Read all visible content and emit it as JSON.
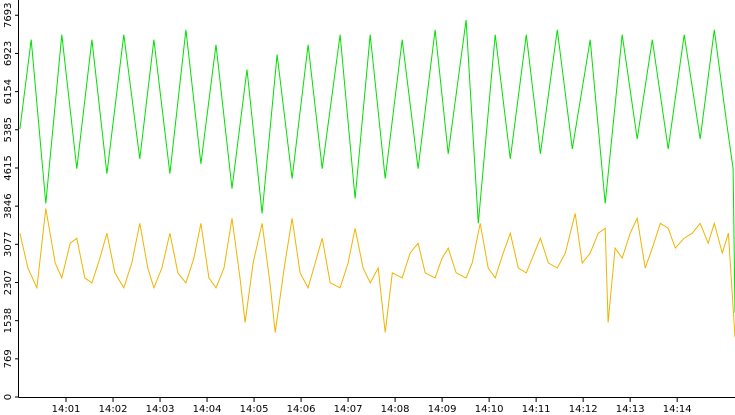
{
  "chart_data": {
    "type": "line",
    "xlim": [
      0,
      15.23
    ],
    "ylim": [
      0,
      8000
    ],
    "yticks": [
      0,
      769,
      1538,
      2307,
      3077,
      3846,
      4615,
      5385,
      6154,
      6923,
      7693
    ],
    "xticks": [
      {
        "value": 1,
        "label": "14:01"
      },
      {
        "value": 2,
        "label": "14:02"
      },
      {
        "value": 3,
        "label": "14:03"
      },
      {
        "value": 4,
        "label": "14:04"
      },
      {
        "value": 5,
        "label": "14:05"
      },
      {
        "value": 6,
        "label": "14:06"
      },
      {
        "value": 7,
        "label": "14:07"
      },
      {
        "value": 8,
        "label": "14:08"
      },
      {
        "value": 9,
        "label": "14:09"
      },
      {
        "value": 10,
        "label": "14:10"
      },
      {
        "value": 11,
        "label": "14:11"
      },
      {
        "value": 12,
        "label": "14:12"
      },
      {
        "value": 13,
        "label": "14:13"
      },
      {
        "value": 14,
        "label": "14:14"
      }
    ],
    "series": [
      {
        "color": "#00e000",
        "x": [
          0.02,
          0.26,
          0.57,
          0.91,
          1.23,
          1.55,
          1.87,
          2.23,
          2.57,
          2.87,
          3.21,
          3.55,
          3.87,
          4.19,
          4.53,
          4.85,
          5.17,
          5.49,
          5.81,
          6.15,
          6.45,
          6.83,
          7.15,
          7.47,
          7.79,
          8.15,
          8.49,
          8.85,
          9.13,
          9.51,
          9.77,
          10.13,
          10.45,
          10.79,
          11.09,
          11.45,
          11.77,
          12.15,
          12.47,
          12.83,
          13.15,
          13.47,
          13.81,
          14.15,
          14.49,
          14.79,
          15.04,
          15.19,
          15.23
        ],
        "values": [
          5400,
          7200,
          3900,
          7300,
          4600,
          7200,
          4500,
          7300,
          4800,
          7200,
          4500,
          7400,
          4700,
          7100,
          4200,
          6600,
          3700,
          6900,
          4400,
          7100,
          4600,
          7300,
          4000,
          7300,
          4400,
          7200,
          4600,
          7400,
          4900,
          7600,
          3500,
          7300,
          4800,
          7300,
          4900,
          7400,
          5000,
          7200,
          3900,
          7300,
          5200,
          7200,
          5000,
          7300,
          5200,
          7400,
          5600,
          4600,
          1700
        ]
      },
      {
        "color": "#f0b400",
        "x": [
          0.02,
          0.19,
          0.38,
          0.57,
          0.77,
          0.91,
          1.09,
          1.23,
          1.4,
          1.55,
          1.72,
          1.87,
          2.04,
          2.23,
          2.4,
          2.57,
          2.74,
          2.87,
          3.04,
          3.21,
          3.38,
          3.55,
          3.72,
          3.87,
          4.04,
          4.19,
          4.36,
          4.53,
          4.7,
          4.81,
          4.98,
          5.17,
          5.34,
          5.45,
          5.64,
          5.81,
          5.98,
          6.15,
          6.3,
          6.45,
          6.62,
          6.83,
          7.0,
          7.15,
          7.32,
          7.47,
          7.64,
          7.79,
          7.94,
          8.15,
          8.32,
          8.49,
          8.64,
          8.85,
          9.0,
          9.13,
          9.3,
          9.51,
          9.64,
          9.81,
          9.98,
          10.13,
          10.3,
          10.45,
          10.62,
          10.79,
          10.96,
          11.09,
          11.26,
          11.45,
          11.62,
          11.83,
          11.98,
          12.15,
          12.32,
          12.47,
          12.53,
          12.68,
          12.83,
          13.0,
          13.15,
          13.32,
          13.47,
          13.64,
          13.81,
          13.96,
          14.15,
          14.32,
          14.49,
          14.66,
          14.79,
          14.96,
          15.09,
          15.23
        ],
        "values": [
          3300,
          2600,
          2200,
          3800,
          2700,
          2400,
          3100,
          3200,
          2400,
          2300,
          2800,
          3300,
          2500,
          2200,
          2700,
          3500,
          2600,
          2200,
          2600,
          3300,
          2500,
          2300,
          2800,
          3500,
          2400,
          2200,
          2600,
          3600,
          2400,
          1500,
          2700,
          3500,
          2300,
          1300,
          2600,
          3600,
          2500,
          2200,
          2700,
          3200,
          2300,
          2200,
          2700,
          3400,
          2600,
          2300,
          2600,
          1300,
          2500,
          2400,
          2900,
          3100,
          2500,
          2400,
          2800,
          3000,
          2500,
          2400,
          2700,
          3500,
          2600,
          2400,
          2900,
          3300,
          2600,
          2500,
          2900,
          3200,
          2700,
          2600,
          2900,
          3700,
          2700,
          2900,
          3300,
          3400,
          1500,
          3000,
          2800,
          3300,
          3600,
          2600,
          3000,
          3500,
          3400,
          3000,
          3200,
          3300,
          3500,
          3100,
          3500,
          2900,
          3300,
          1200
        ]
      }
    ]
  }
}
